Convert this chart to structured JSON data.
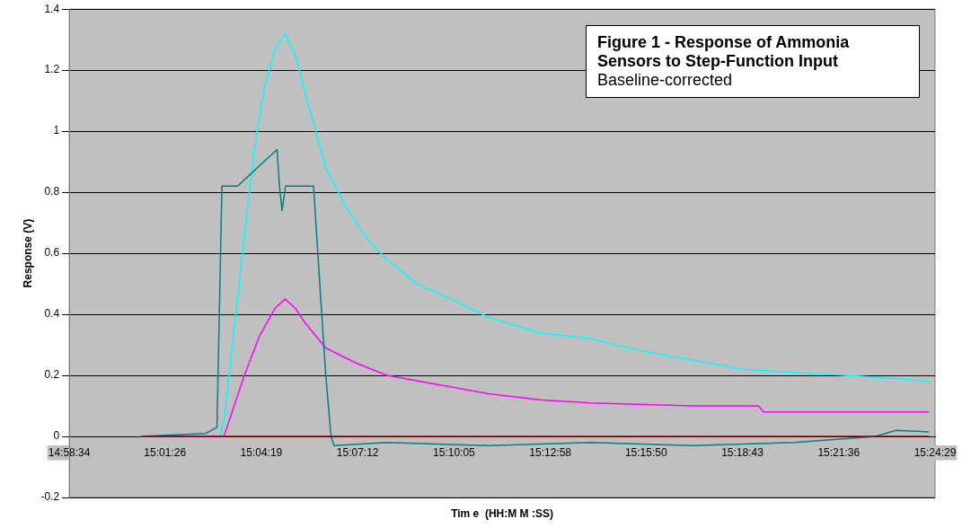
{
  "chart_data": {
    "type": "line",
    "title": "Figure 1 -  Response of Ammonia Sensors to   Step-Function Input",
    "subtitle": "Baseline-corrected",
    "xlabel": "Tim e  (HH:M M :SS)",
    "ylabel": "Response (V)",
    "xlim": [
      14.976111,
      15.408056
    ],
    "xticks": [
      {
        "value": 14.976111,
        "label": "14:58:34"
      },
      {
        "value": 15.023889,
        "label": "15:01:26"
      },
      {
        "value": 15.071944,
        "label": "15:04:19"
      },
      {
        "value": 15.12,
        "label": "15:07:12"
      },
      {
        "value": 15.168056,
        "label": "15:10:05"
      },
      {
        "value": 15.216111,
        "label": "15:12:58"
      },
      {
        "value": 15.263889,
        "label": "15:15:50"
      },
      {
        "value": 15.311944,
        "label": "15:18:43"
      },
      {
        "value": 15.36,
        "label": "15:21:36"
      },
      {
        "value": 15.408056,
        "label": "15:24:29"
      }
    ],
    "ylim": [
      -0.2,
      1.4
    ],
    "yticks": [
      -0.2,
      0,
      0.2,
      0.4,
      0.6,
      0.8,
      1,
      1.2,
      1.4
    ],
    "grid": "y",
    "legend": false,
    "marker": "none",
    "line_style": "solid",
    "series": [
      {
        "color": "#800000",
        "x": [
          15.0127,
          15.405
        ],
        "values": [
          0,
          0
        ]
      },
      {
        "color": "#008080",
        "x": [
          15.0117,
          15.0442,
          15.0498,
          15.0523,
          15.06,
          15.0798,
          15.081,
          15.0823,
          15.084,
          15.098,
          15.1006,
          15.1041,
          15.1067,
          15.1082,
          15.1346,
          15.1854,
          15.2362,
          15.287,
          15.3378,
          15.3784,
          15.3886,
          15.405
        ],
        "values": [
          0,
          0.01,
          0.03,
          0.82,
          0.82,
          0.94,
          0.82,
          0.74,
          0.82,
          0.82,
          0.55,
          0.2,
          0,
          -0.03,
          -0.02,
          -0.03,
          -0.02,
          -0.03,
          -0.02,
          0.0,
          0.02,
          0.015
        ]
      },
      {
        "color": "#00ffff",
        "x": [
          15.0513,
          15.0533,
          15.0584,
          15.0635,
          15.0686,
          15.0737,
          15.0788,
          15.0838,
          15.0889,
          15.094,
          15.0991,
          15.1041,
          15.1143,
          15.1245,
          15.1346,
          15.1498,
          15.1702,
          15.1854,
          15.2108,
          15.2362,
          15.2616,
          15.287,
          15.3124,
          15.3378,
          15.3632,
          15.3886,
          15.405
        ],
        "values": [
          0,
          0.05,
          0.35,
          0.65,
          0.95,
          1.15,
          1.27,
          1.32,
          1.25,
          1.12,
          1.0,
          0.88,
          0.75,
          0.65,
          0.58,
          0.5,
          0.44,
          0.39,
          0.34,
          0.32,
          0.28,
          0.25,
          0.22,
          0.21,
          0.2,
          0.19,
          0.18
        ]
      },
      {
        "color": "#ff00ff",
        "x": [
          15.0127,
          15.0533,
          15.0558,
          15.0635,
          15.0711,
          15.0788,
          15.0838,
          15.0889,
          15.094,
          15.1041,
          15.1194,
          15.1346,
          15.16,
          15.1854,
          15.2108,
          15.2362,
          15.287,
          15.32,
          15.3225,
          15.405
        ],
        "values": [
          0,
          0,
          0.05,
          0.2,
          0.33,
          0.42,
          0.45,
          0.42,
          0.37,
          0.29,
          0.24,
          0.2,
          0.17,
          0.14,
          0.12,
          0.11,
          0.1,
          0.1,
          0.08,
          0.08
        ]
      }
    ]
  }
}
